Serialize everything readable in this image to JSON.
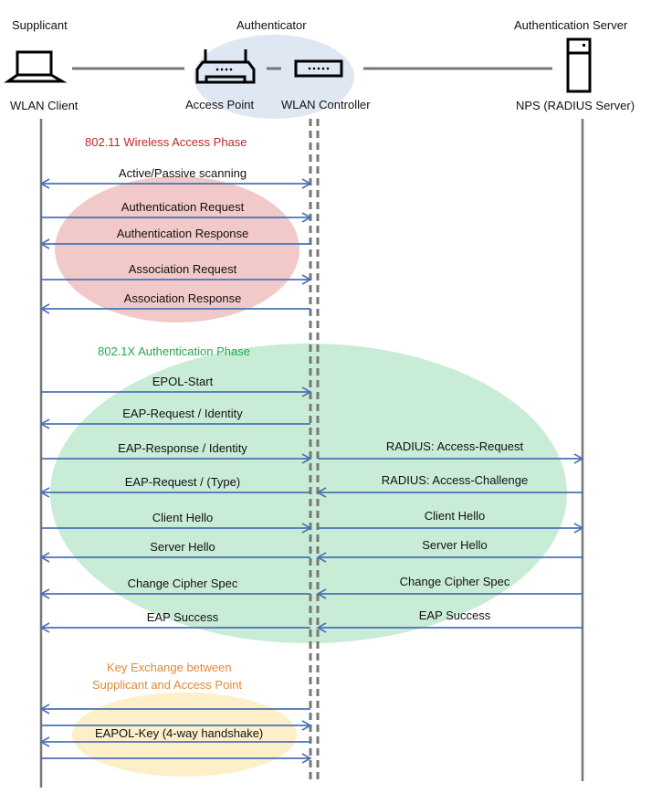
{
  "entities": {
    "supplicant": {
      "role": "Supplicant",
      "name": "WLAN Client",
      "icon": "laptop-icon"
    },
    "authenticator": {
      "role": "Authenticator",
      "ap_name": "Access Point",
      "controller_name": "WLAN Controller",
      "ap_icon": "router-icon",
      "controller_icon": "switch-icon"
    },
    "server": {
      "role": "Authentication Server",
      "name": "NPS (RADIUS Server)",
      "icon": "server-tower-icon"
    }
  },
  "phases": [
    {
      "title": "802.11 Wireless Access Phase",
      "color": "#c0282a",
      "fill": "#f2c9c9"
    },
    {
      "title": "802.1X Authentication Phase",
      "color": "#22a854",
      "fill": "#c9ecd6"
    },
    {
      "title_line1": "Key Exchange between",
      "title_line2": "Supplicant and Access Point",
      "color": "#e08a3c",
      "fill": "#fdf0c9"
    }
  ],
  "arrow_color": "#4a72b5",
  "messages": [
    {
      "label": "Active/Passive scanning",
      "dir": "both"
    },
    {
      "label": "Authentication Request",
      "dir": "right"
    },
    {
      "label": "Authentication Response",
      "dir": "left"
    },
    {
      "label": "Association Request",
      "dir": "right"
    },
    {
      "label": "Association Response",
      "dir": "left"
    },
    {
      "label": "EPOL-Start",
      "dir": "right"
    },
    {
      "label": "EAP-Request / Identity",
      "dir": "left"
    },
    {
      "label": "EAP-Response / Identity",
      "dir": "right",
      "server_label": "RADIUS: Access-Request"
    },
    {
      "label": "EAP-Request / (Type)",
      "dir": "left",
      "server_label": "RADIUS: Access-Challenge"
    },
    {
      "label": "Client Hello",
      "dir": "right",
      "server_label": "Client Hello"
    },
    {
      "label": "Server Hello",
      "dir": "left",
      "server_label": "Server Hello"
    },
    {
      "label": "Change Cipher Spec",
      "dir": "left",
      "server_label": "Change Cipher Spec"
    },
    {
      "label": "EAP Success",
      "dir": "left",
      "server_label": "EAP Success"
    }
  ],
  "key_exchange": {
    "label": "EAPOL-Key (4-way handshake)",
    "dirs": [
      "left",
      "right",
      "left",
      "right"
    ]
  }
}
